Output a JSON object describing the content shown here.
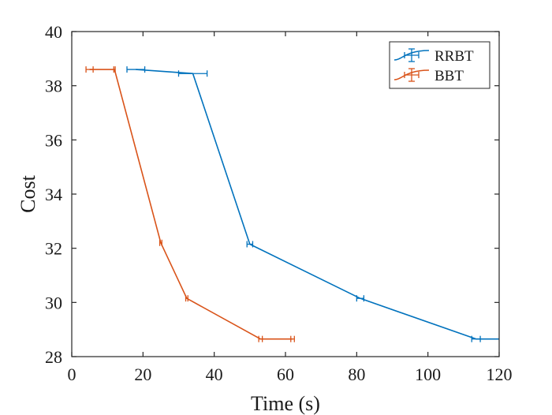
{
  "chart_data": {
    "type": "line",
    "title": "",
    "xlabel": "Time (s)",
    "ylabel": "Cost",
    "xlim": [
      0,
      120
    ],
    "ylim": [
      28,
      40
    ],
    "xticks": [
      0,
      20,
      40,
      60,
      80,
      100,
      120
    ],
    "yticks": [
      28,
      30,
      32,
      34,
      36,
      38,
      40
    ],
    "xtick_labels": [
      "0",
      "20",
      "40",
      "60",
      "80",
      "100",
      "120"
    ],
    "ytick_labels": [
      "28",
      "30",
      "32",
      "34",
      "36",
      "38",
      "40"
    ],
    "grid": false,
    "legend_position": "top-right",
    "series": [
      {
        "name": "RRBT",
        "color": "#0072BD",
        "points": [
          {
            "x": 18.0,
            "y": 38.6,
            "xneg": 2.5,
            "xpos": 2.5
          },
          {
            "x": 34.0,
            "y": 38.45,
            "xneg": 4.0,
            "xpos": 4.0
          },
          {
            "x": 50.0,
            "y": 32.15,
            "xneg": 0.8,
            "xpos": 0.8
          },
          {
            "x": 81.0,
            "y": 30.15,
            "xneg": 1.0,
            "xpos": 1.0
          },
          {
            "x": 113.5,
            "y": 28.65,
            "xneg": 1.2,
            "xpos": 1.2
          },
          {
            "x": 120.0,
            "y": 28.65,
            "xneg": 0,
            "xpos": 0
          }
        ]
      },
      {
        "name": "BBT",
        "color": "#D95319",
        "points": [
          {
            "x": 5.0,
            "y": 38.6,
            "xneg": 1.0,
            "xpos": 1.0
          },
          {
            "x": 12.0,
            "y": 38.6,
            "xneg": 0.2,
            "xpos": 0.2
          },
          {
            "x": 25.0,
            "y": 32.2,
            "xneg": 0.3,
            "xpos": 0.3
          },
          {
            "x": 32.3,
            "y": 30.15,
            "xneg": 0.3,
            "xpos": 0.3
          },
          {
            "x": 53.0,
            "y": 28.65,
            "xneg": 0.5,
            "xpos": 0.5
          },
          {
            "x": 62.0,
            "y": 28.65,
            "xneg": 0.5,
            "xpos": 0.5
          }
        ]
      }
    ]
  }
}
